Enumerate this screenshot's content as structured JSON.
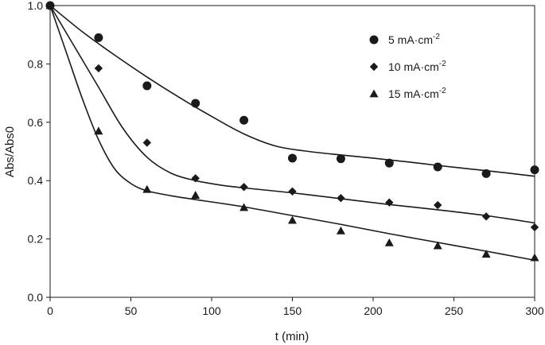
{
  "chart_data": {
    "type": "scatter",
    "title": "",
    "xlabel": "t (min)",
    "ylabel": "Abs/Abs0",
    "xlim": [
      0,
      300
    ],
    "ylim": [
      0,
      1.0
    ],
    "xticks": [
      0,
      50,
      100,
      150,
      200,
      250,
      300
    ],
    "yticks": [
      "0.0",
      "0.2",
      "0.4",
      "0.6",
      "0.8",
      "1.0"
    ],
    "grid": false,
    "legend_position": "top-right",
    "series": [
      {
        "name": "5 mA·cm",
        "superscript": "-2",
        "marker": "circle",
        "x": [
          0,
          30,
          60,
          90,
          120,
          150,
          180,
          210,
          240,
          270,
          300
        ],
        "y": [
          1.0,
          0.89,
          0.725,
          0.665,
          0.607,
          0.477,
          0.475,
          0.46,
          0.447,
          0.424,
          0.437
        ],
        "fit_x": [
          0,
          20,
          40,
          60,
          80,
          100,
          120,
          140,
          160,
          180,
          200,
          220,
          240,
          260,
          280,
          300
        ],
        "fit_y": [
          1.0,
          0.91,
          0.83,
          0.755,
          0.685,
          0.62,
          0.56,
          0.518,
          0.5,
          0.488,
          0.477,
          0.465,
          0.452,
          0.44,
          0.428,
          0.415
        ]
      },
      {
        "name": "10 mA·cm",
        "superscript": "-2",
        "marker": "diamond",
        "x": [
          0,
          30,
          60,
          90,
          120,
          150,
          180,
          210,
          240,
          270,
          300
        ],
        "y": [
          1.0,
          0.785,
          0.53,
          0.408,
          0.378,
          0.363,
          0.34,
          0.325,
          0.316,
          0.277,
          0.24
        ],
        "fit_x": [
          0,
          15,
          30,
          45,
          60,
          75,
          90,
          105,
          120,
          150,
          180,
          210,
          240,
          270,
          300
        ],
        "fit_y": [
          1.0,
          0.86,
          0.72,
          0.58,
          0.48,
          0.425,
          0.4,
          0.385,
          0.375,
          0.358,
          0.338,
          0.318,
          0.3,
          0.28,
          0.255
        ]
      },
      {
        "name": "15 mA·cm",
        "superscript": "-2",
        "marker": "triangle",
        "x": [
          0,
          30,
          60,
          90,
          120,
          150,
          180,
          210,
          240,
          270,
          300
        ],
        "y": [
          1.0,
          0.57,
          0.37,
          0.35,
          0.308,
          0.264,
          0.228,
          0.187,
          0.177,
          0.148,
          0.136
        ],
        "fit_x": [
          0,
          10,
          20,
          30,
          40,
          50,
          60,
          75,
          90,
          120,
          150,
          180,
          210,
          240,
          270,
          300
        ],
        "fit_y": [
          1.0,
          0.84,
          0.68,
          0.54,
          0.44,
          0.39,
          0.365,
          0.348,
          0.335,
          0.31,
          0.28,
          0.25,
          0.218,
          0.188,
          0.158,
          0.127
        ]
      }
    ]
  }
}
